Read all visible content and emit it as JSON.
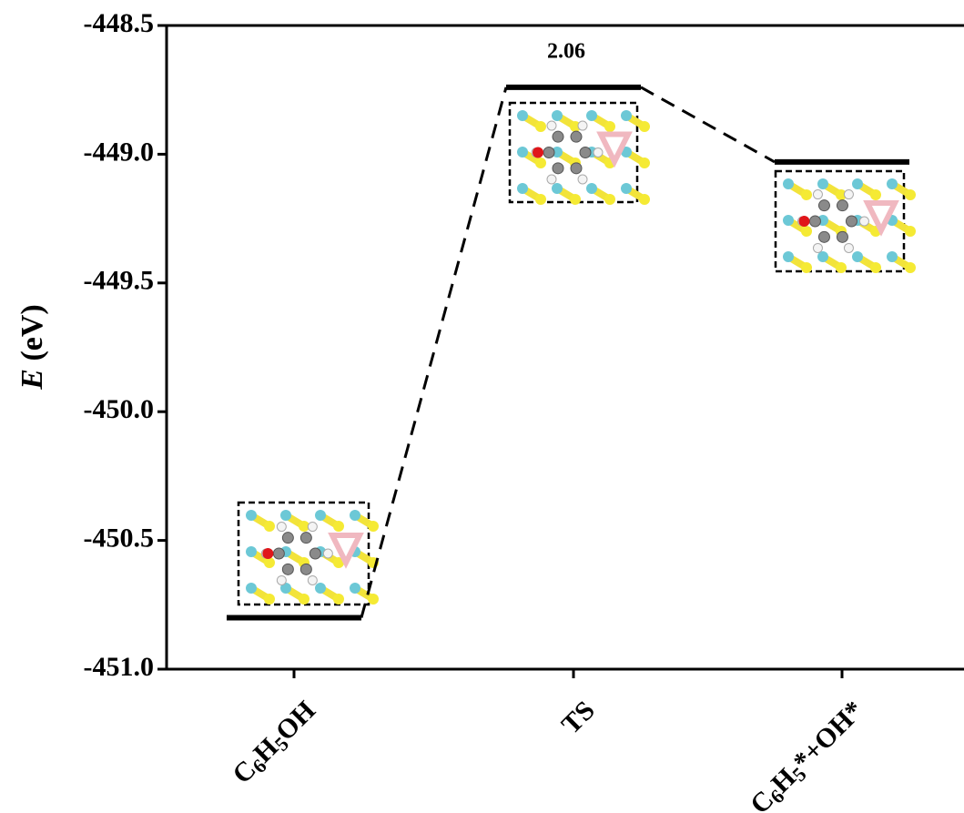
{
  "chart_data": {
    "type": "energy-profile",
    "ylabel": "E (eV)",
    "categories": [
      "C6H5OH",
      "TS",
      "C6H5*+OH*"
    ],
    "values": [
      -450.8,
      -448.74,
      -449.03
    ],
    "annotation": "2.06",
    "color": "#000000",
    "ylim": [
      -451.0,
      -448.5
    ],
    "yticks": [
      {
        "value": -451.0,
        "label": "-451.0"
      },
      -450.5,
      {
        "value": -450.0,
        "label": "-450.0"
      },
      -449.5,
      {
        "value": -449.0,
        "label": "-449.0"
      },
      -448.5
    ]
  }
}
